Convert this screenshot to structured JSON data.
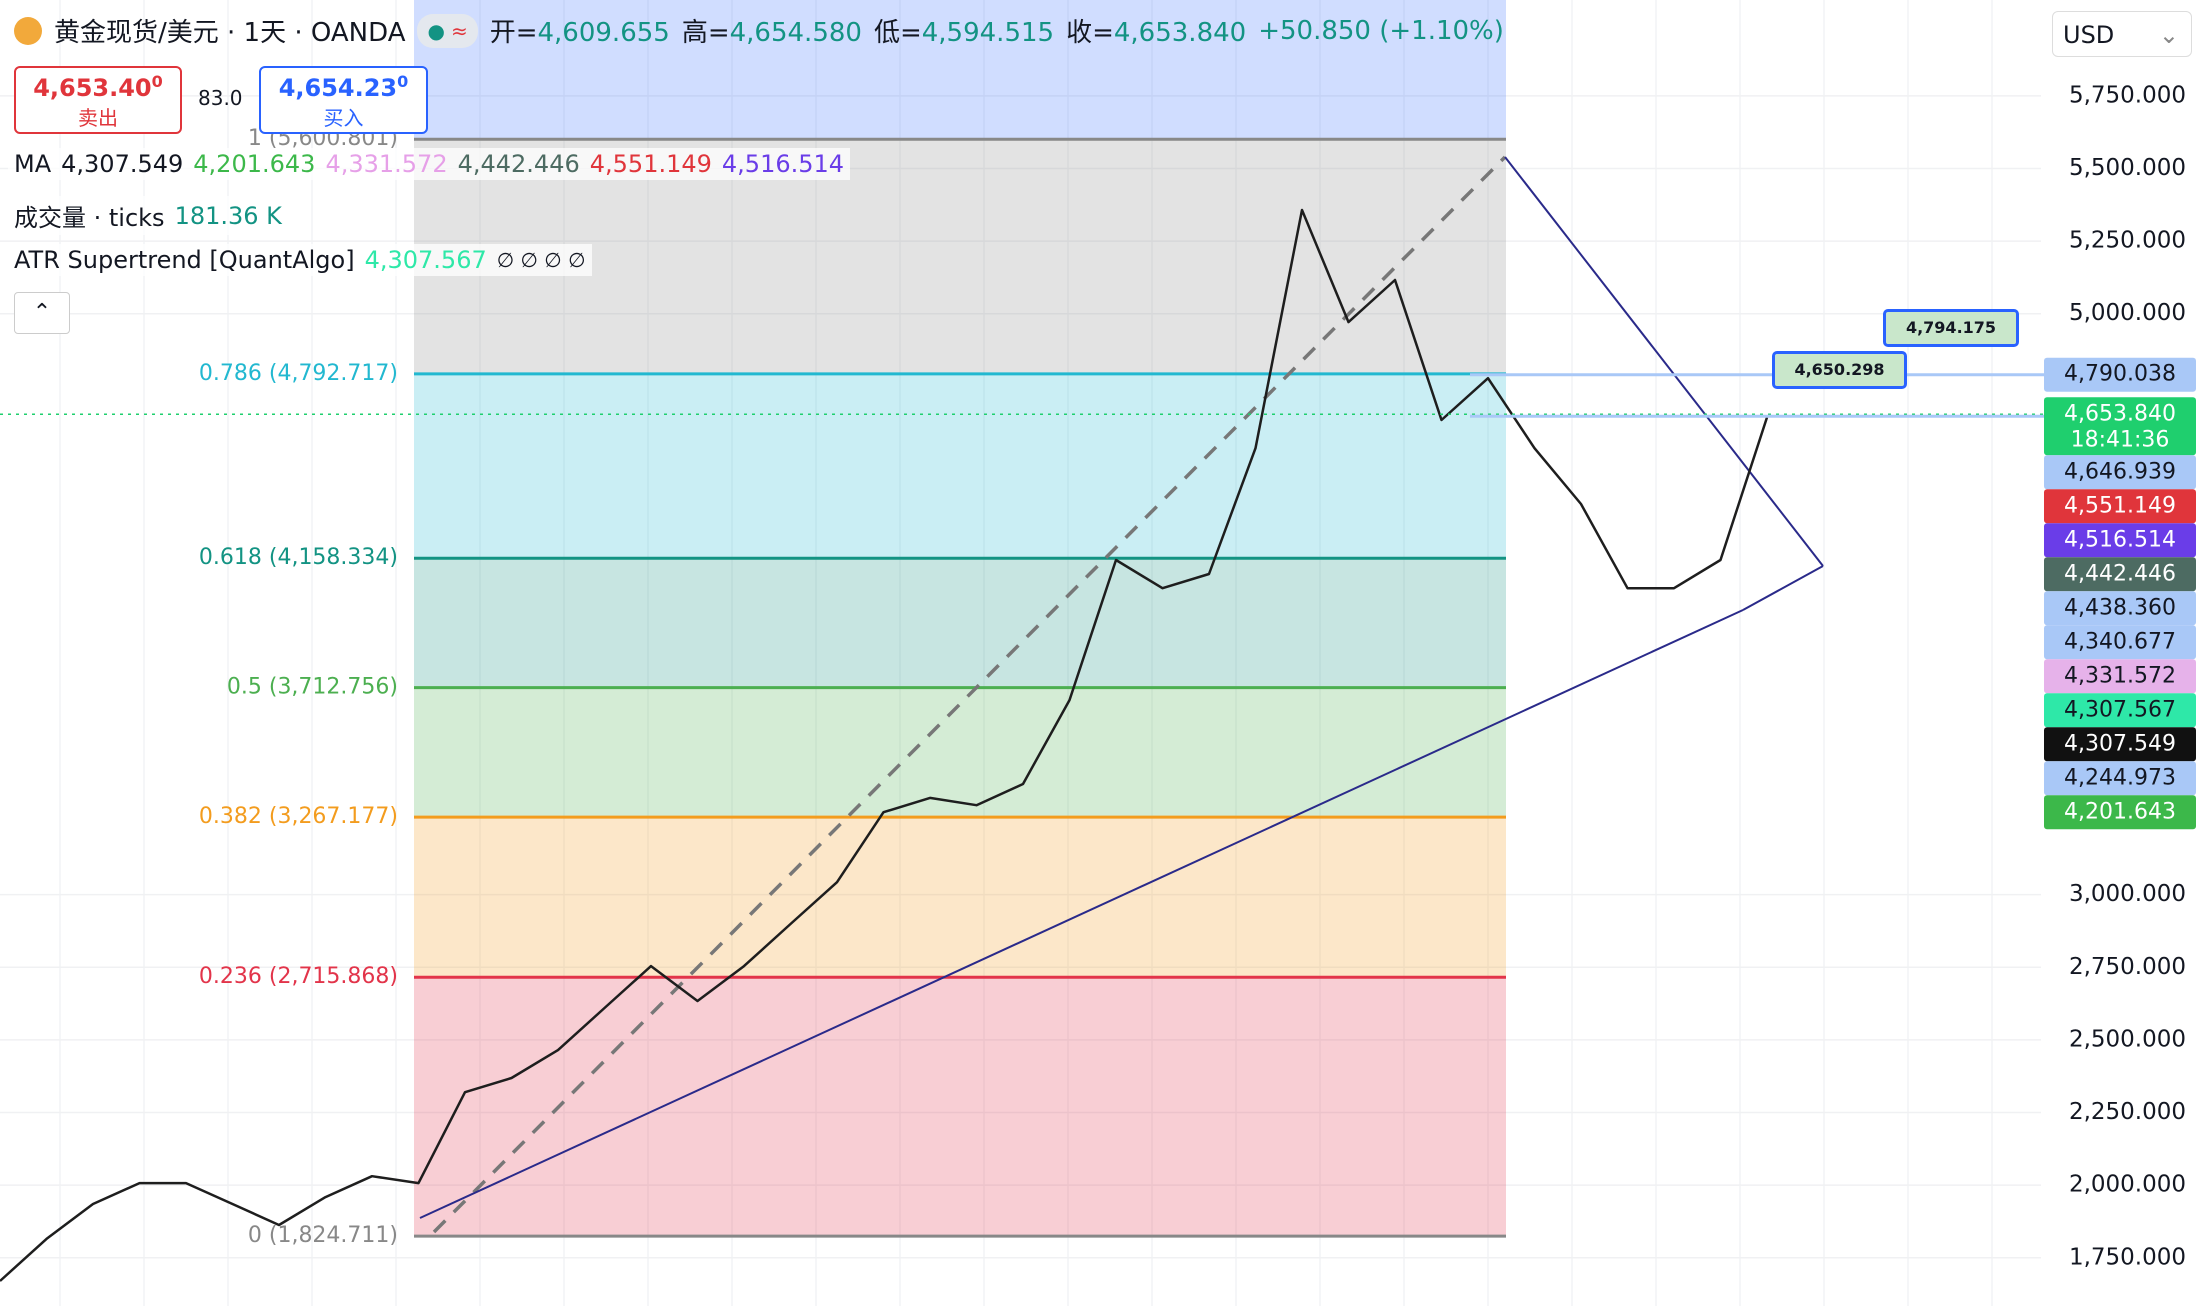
{
  "header": {
    "symbol": "黄金现货/美元 · 1天 · OANDA",
    "ohlc": [
      {
        "key": "开=",
        "value": "4,609.655"
      },
      {
        "key": "高=",
        "value": "4,654.580"
      },
      {
        "key": "低=",
        "value": "4,594.515"
      },
      {
        "key": "收=",
        "value": "4,653.840"
      }
    ],
    "change": "+50.850 (+1.10%)",
    "bid": {
      "price": "4,653.40",
      "fraction": "0",
      "label": "卖出"
    },
    "spread": "83.0",
    "ask": {
      "price": "4,654.23",
      "fraction": "0",
      "label": "买入"
    },
    "ma": {
      "label": "MA",
      "values": [
        "4,307.549",
        "4,201.643",
        "4,331.572",
        "4,442.446",
        "4,551.149",
        "4,516.514"
      ]
    },
    "volume": {
      "label": "成交量 · ticks",
      "value": "181.36 K"
    },
    "atr": {
      "label": "ATR Supertrend [QuantAlgo]",
      "value": "4,307.567",
      "extras": "∅ ∅ ∅ ∅"
    },
    "currency": "USD"
  },
  "chart_data": {
    "type": "line",
    "ylim": [
      1584,
      6080
    ],
    "yticks": [
      {
        "value": 5750,
        "label": "5,750.000"
      },
      {
        "value": 5500,
        "label": "5,500.000"
      },
      {
        "value": 5250,
        "label": "5,250.000"
      },
      {
        "value": 5000,
        "label": "5,000.000"
      },
      {
        "value": 3000,
        "label": "3,000.000"
      },
      {
        "value": 2750,
        "label": "2,750.000"
      },
      {
        "value": 2500,
        "label": "2,500.000"
      },
      {
        "value": 2250,
        "label": "2,250.000"
      },
      {
        "value": 2000,
        "label": "2,000.000"
      },
      {
        "value": 1750,
        "label": "1,750.000"
      }
    ],
    "grid": true,
    "series": [
      {
        "color": "#1e1e1e",
        "values": [
          1670,
          1815,
          1935,
          2007,
          2007,
          1935,
          1863,
          1959,
          2031,
          2007,
          2320,
          2369,
          2465,
          2610,
          2754,
          2634,
          2754,
          2899,
          3043,
          3284,
          3333,
          3308,
          3381,
          3670,
          4152,
          4055,
          4104,
          4537,
          5357,
          4971,
          5116,
          4634,
          4778,
          4537,
          4345,
          4055,
          4055,
          4152,
          4643
        ]
      }
    ],
    "fib_levels": [
      {
        "value": 5600.801,
        "label": "1 (5,600.801)",
        "color": "#888888"
      },
      {
        "value": 4792.717,
        "label": "0.786 (4,792.717)",
        "color": "#22b8d0"
      },
      {
        "value": 4158.334,
        "label": "0.618 (4,158.334)",
        "color": "#139383"
      },
      {
        "value": 3712.756,
        "label": "0.5 (3,712.756)",
        "color": "#4caf50"
      },
      {
        "value": 3267.177,
        "label": "0.382 (3,267.177)",
        "color": "#f39c1e"
      },
      {
        "value": 2715.868,
        "label": "0.236 (2,715.868)",
        "color": "#e2344a"
      },
      {
        "value": 1824.711,
        "label": "0 (1,824.711)",
        "color": "#888888"
      }
    ],
    "price_labels": [
      {
        "value": 4790.038,
        "label": "4,790.038",
        "color": "#a9c8f7",
        "text_color": "#131722"
      },
      {
        "value": 4653.84,
        "label": "4,653.840",
        "countdown": "18:41:36",
        "color": "#1fcf6e",
        "text_color": "#ffffff"
      },
      {
        "value": 4646.939,
        "label": "4,646.939",
        "color": "#a9c8f7",
        "text_color": "#131722"
      },
      {
        "value": 4551.149,
        "label": "4,551.149",
        "color": "#e0353b",
        "text_color": "#ffffff"
      },
      {
        "value": 4516.514,
        "label": "4,516.514",
        "color": "#6a3de8",
        "text_color": "#ffffff"
      },
      {
        "value": 4442.446,
        "label": "4,442.446",
        "color": "#4d6b62",
        "text_color": "#ffffff"
      },
      {
        "value": 4438.36,
        "label": "4,438.360",
        "color": "#a9c8f7",
        "text_color": "#131722"
      },
      {
        "value": 4340.677,
        "label": "4,340.677",
        "color": "#a9c8f7",
        "text_color": "#131722"
      },
      {
        "value": 4331.572,
        "label": "4,331.572",
        "color": "#e6b2ea",
        "text_color": "#131722"
      },
      {
        "value": 4307.567,
        "label": "4,307.567",
        "color": "#2ee8a8",
        "text_color": "#131722"
      },
      {
        "value": 4307.549,
        "label": "4,307.549",
        "color": "#111111",
        "text_color": "#ffffff"
      },
      {
        "value": 4244.973,
        "label": "4,244.973",
        "color": "#a9c8f7",
        "text_color": "#131722"
      },
      {
        "value": 4201.643,
        "label": "4,201.643",
        "color": "#3cb84a",
        "text_color": "#ffffff"
      }
    ],
    "callouts": [
      "4,650.298",
      "4,794.175"
    ]
  }
}
